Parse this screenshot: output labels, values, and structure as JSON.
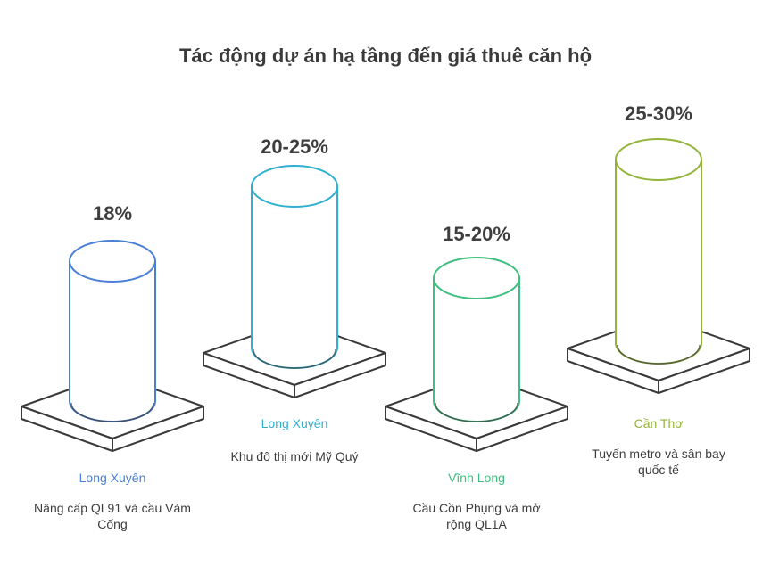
{
  "title": "Tác động dự án hạ tầng đến giá thuê căn hộ",
  "items": [
    {
      "percent": "18%",
      "location": "Long Xuyên",
      "description": "Nâng cấp QL91 và cầu Vàm Cống",
      "color": "#4a7fd6"
    },
    {
      "percent": "20-25%",
      "location": "Long Xuyên",
      "description": "Khu đô thị mới Mỹ Quý",
      "color": "#2fb0cf"
    },
    {
      "percent": "15-20%",
      "location": "Vĩnh Long",
      "description": "Cầu Cồn Phụng và mở rộng QL1A",
      "color": "#3fbf7f"
    },
    {
      "percent": "25-30%",
      "location": "Cần Thơ",
      "description": "Tuyến metro và sân bay quốc tế",
      "color": "#93b43a"
    }
  ]
}
